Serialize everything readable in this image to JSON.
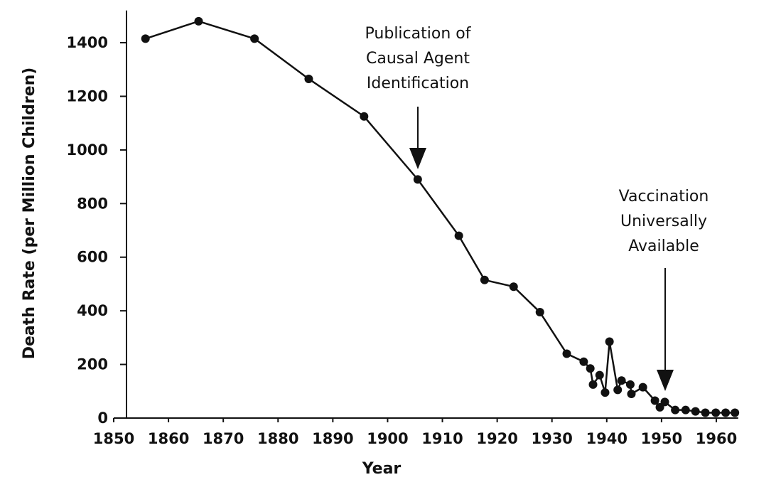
{
  "chart_data": {
    "type": "line",
    "x_label": "Year",
    "y_label": "Death Rate (per Million Children)",
    "x": [
      1855.8,
      1865.5,
      1875.7,
      1885.6,
      1895.7,
      1905.5,
      1913,
      1917.7,
      1923,
      1927.8,
      1932.7,
      1935.8,
      1937,
      1937.5,
      1938.7,
      1939.7,
      1940.5,
      1942,
      1942.7,
      1944.3,
      1944.5,
      1946.6,
      1948.8,
      1949.7,
      1950.6,
      1952.5,
      1954.4,
      1956.2,
      1958,
      1959.9,
      1961.7,
      1963.4
    ],
    "values": [
      1415,
      1480,
      1415,
      1265,
      1125,
      890,
      680,
      515,
      490,
      395,
      240,
      210,
      185,
      125,
      160,
      95,
      285,
      105,
      140,
      125,
      90,
      115,
      65,
      40,
      60,
      30,
      30,
      25,
      20,
      20,
      20,
      20
    ],
    "color": "#111111",
    "xlim": [
      1850,
      1964
    ],
    "xticks": [
      1850,
      1860,
      1870,
      1880,
      1890,
      1900,
      1910,
      1920,
      1930,
      1940,
      1950,
      1960
    ],
    "ylim": [
      0,
      1520
    ],
    "yticks": [
      0,
      200,
      400,
      600,
      800,
      1000,
      1200,
      1400
    ],
    "annotations": [
      {
        "lines": [
          "Publication of",
          "Causal Agent",
          "Identification"
        ]
      },
      {
        "lines": [
          "Vaccination",
          "Universally",
          "Available"
        ]
      }
    ]
  }
}
